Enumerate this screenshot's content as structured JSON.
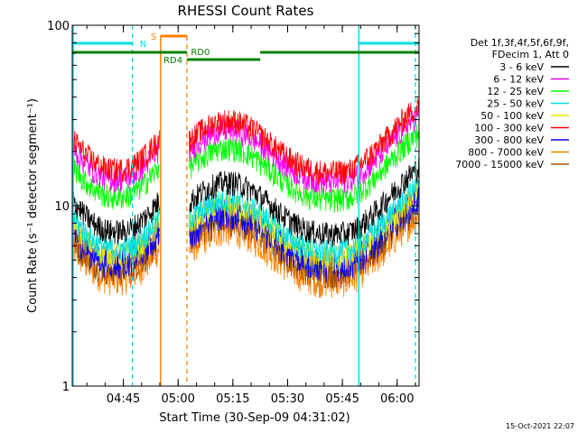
{
  "chart_data": {
    "type": "line",
    "title": "RHESSI Count Rates",
    "xlabel": "Start Time (30-Sep-09 04:31:02)",
    "ylabel": "Count Rate (s⁻¹ detector segment⁻¹)",
    "y_scale": "log",
    "ylim": [
      1,
      100
    ],
    "xlim_minutes_since_0431": [
      0,
      95
    ],
    "x_ticks": [
      "04:45",
      "05:00",
      "05:15",
      "05:30",
      "05:45",
      "06:00"
    ],
    "x_tick_minutes_since_0431": [
      14,
      29,
      44,
      59,
      74,
      89
    ],
    "y_ticks": [
      "1",
      "10",
      "100"
    ],
    "y_tick_values": [
      1,
      10,
      100
    ],
    "legend_header": [
      "Det 1f,3f,4f,5f,6f,9f,",
      "FDecim 1, Att 0"
    ],
    "series": [
      {
        "name": "3 - 6 keV",
        "color": "#000000",
        "scale": 1.0
      },
      {
        "name": "6 - 12 keV",
        "color": "#ff00ff",
        "scale": 1.95
      },
      {
        "name": "12 - 25 keV",
        "color": "#00ff00",
        "scale": 1.55
      },
      {
        "name": "25 - 50 keV",
        "color": "#00e0e0",
        "scale": 0.8
      },
      {
        "name": "50 - 100 keV",
        "color": "#e6e600",
        "scale": 0.74
      },
      {
        "name": "100 - 300 keV",
        "color": "#ff0000",
        "scale": 2.2
      },
      {
        "name": "300 - 800 keV",
        "color": "#0000ff",
        "scale": 0.68
      },
      {
        "name": "800 - 7000 keV",
        "color": "#ff8000",
        "scale": 0.55
      },
      {
        "name": "7000 - 15000 keV",
        "color": "#a05000",
        "scale": 0.62
      }
    ],
    "night_interval_minutes": [
      24,
      32
    ],
    "annotations": {
      "N": {
        "label": "N",
        "color": "#00e0e0"
      },
      "S": {
        "label": "S",
        "color": "#ff8000"
      },
      "RD4": {
        "label": "RD4",
        "color": "#008000"
      },
      "RD0": {
        "label": "RD0",
        "color": "#008000"
      }
    },
    "colors": {
      "axis": "#000000",
      "cyan_marker": "#00e0e0",
      "orange_marker": "#ff8000",
      "green_bar": "#008000"
    }
  },
  "footer": {
    "date_stamp": "15-Oct-2021 22:07"
  }
}
